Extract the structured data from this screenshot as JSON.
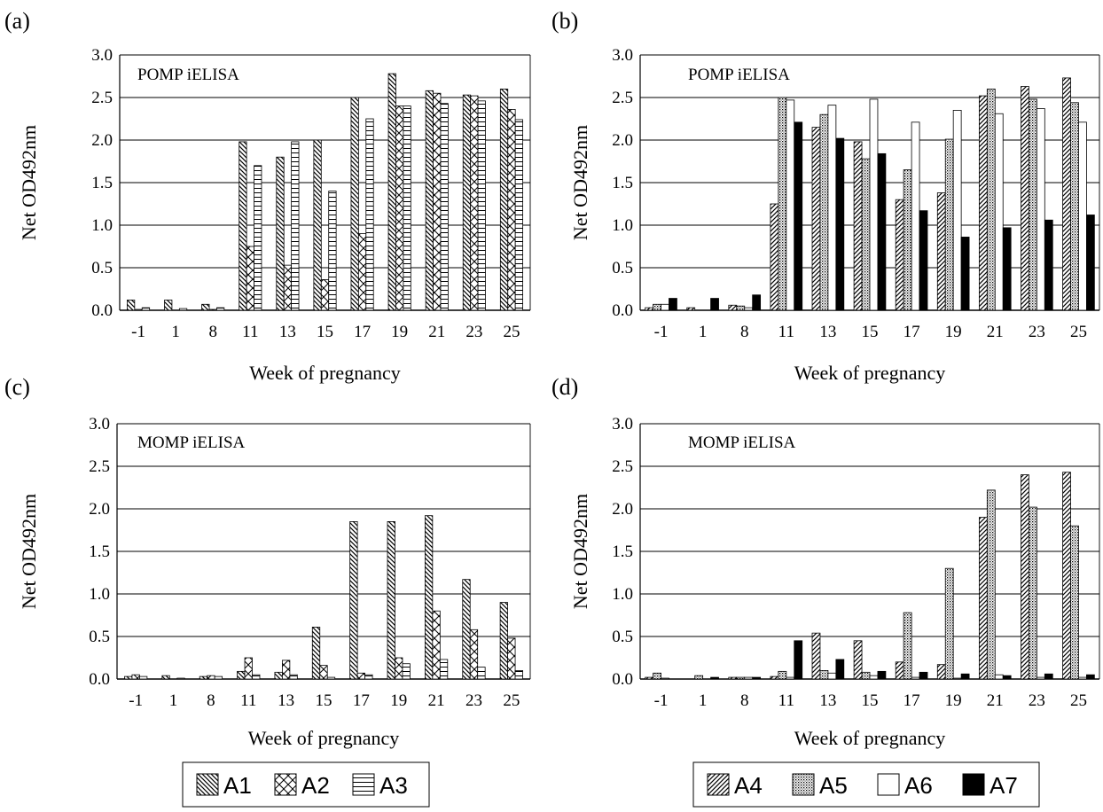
{
  "legends": [
    {
      "items": [
        "A1",
        "A2",
        "A3"
      ]
    },
    {
      "items": [
        "A4",
        "A5",
        "A6",
        "A7"
      ]
    }
  ],
  "chart_data": [
    {
      "type": "bar",
      "panel_label": "(a)",
      "title": "POMP iELISA",
      "xlabel": "Week of pregnancy",
      "ylabel": "Net OD492nm",
      "ylim": [
        0,
        3.0
      ],
      "yticks": [
        "0.0",
        "0.5",
        "1.0",
        "1.5",
        "2.0",
        "2.5",
        "3.0"
      ],
      "grid": true,
      "categories": [
        "-1",
        "1",
        "8",
        "11",
        "13",
        "15",
        "17",
        "19",
        "21",
        "23",
        "25"
      ],
      "series": [
        {
          "name": "A1",
          "values": [
            0.12,
            0.12,
            0.07,
            1.98,
            1.8,
            2.0,
            2.5,
            2.78,
            2.58,
            2.53,
            2.6
          ]
        },
        {
          "name": "A2",
          "values": [
            0.01,
            0.0,
            0.01,
            0.75,
            0.53,
            0.36,
            0.9,
            2.4,
            2.55,
            2.52,
            2.36
          ]
        },
        {
          "name": "A3",
          "values": [
            0.03,
            0.02,
            0.03,
            1.7,
            1.98,
            1.4,
            2.25,
            2.4,
            2.43,
            2.46,
            2.24
          ]
        }
      ]
    },
    {
      "type": "bar",
      "panel_label": "(b)",
      "title": "POMP iELISA",
      "xlabel": "Week of pregnancy",
      "ylabel": "Net OD492nm",
      "ylim": [
        0,
        3.0
      ],
      "yticks": [
        "0.0",
        "0.5",
        "1.0",
        "1.5",
        "2.0",
        "2.5",
        "3.0"
      ],
      "grid": true,
      "categories": [
        "-1",
        "1",
        "8",
        "11",
        "13",
        "15",
        "17",
        "19",
        "21",
        "23",
        "25"
      ],
      "series": [
        {
          "name": "A4",
          "values": [
            0.03,
            0.03,
            0.06,
            1.25,
            2.15,
            1.98,
            1.3,
            1.38,
            2.52,
            2.63,
            2.73
          ]
        },
        {
          "name": "A5",
          "values": [
            0.07,
            0.0,
            0.05,
            2.5,
            2.3,
            1.78,
            1.65,
            2.01,
            2.6,
            2.48,
            2.44
          ]
        },
        {
          "name": "A6",
          "values": [
            0.07,
            0.0,
            0.03,
            2.47,
            2.41,
            2.48,
            2.21,
            2.35,
            2.31,
            2.37,
            2.21
          ]
        },
        {
          "name": "A7",
          "values": [
            0.14,
            0.14,
            0.18,
            2.21,
            2.02,
            1.84,
            1.17,
            0.86,
            0.97,
            1.06,
            1.12
          ]
        }
      ]
    },
    {
      "type": "bar",
      "panel_label": "(c)",
      "title": "MOMP iELISA",
      "xlabel": "Week of pregnancy",
      "ylabel": "Net OD492nm",
      "ylim": [
        0,
        3.0
      ],
      "yticks": [
        "0.0",
        "0.5",
        "1.0",
        "1.5",
        "2.0",
        "2.5",
        "3.0"
      ],
      "grid": true,
      "categories": [
        "-1",
        "1",
        "8",
        "11",
        "13",
        "15",
        "17",
        "19",
        "21",
        "23",
        "25"
      ],
      "series": [
        {
          "name": "A1",
          "values": [
            0.03,
            0.04,
            0.03,
            0.09,
            0.08,
            0.61,
            1.85,
            1.85,
            1.92,
            1.17,
            0.9
          ]
        },
        {
          "name": "A2",
          "values": [
            0.05,
            0.0,
            0.04,
            0.25,
            0.22,
            0.16,
            0.07,
            0.25,
            0.8,
            0.58,
            0.48
          ]
        },
        {
          "name": "A3",
          "values": [
            0.03,
            0.01,
            0.03,
            0.05,
            0.05,
            0.02,
            0.05,
            0.18,
            0.23,
            0.14,
            0.1
          ]
        }
      ]
    },
    {
      "type": "bar",
      "panel_label": "(d)",
      "title": "MOMP iELISA",
      "xlabel": "Week of pregnancy",
      "ylabel": "Net OD492nm",
      "ylim": [
        0,
        3.0
      ],
      "yticks": [
        "0.0",
        "0.5",
        "1.0",
        "1.5",
        "2.0",
        "2.5",
        "3.0"
      ],
      "grid": true,
      "categories": [
        "-1",
        "1",
        "8",
        "11",
        "13",
        "15",
        "17",
        "19",
        "21",
        "23",
        "25"
      ],
      "series": [
        {
          "name": "A4",
          "values": [
            0.02,
            0.0,
            0.02,
            0.03,
            0.54,
            0.45,
            0.2,
            0.17,
            1.9,
            2.4,
            2.43
          ]
        },
        {
          "name": "A5",
          "values": [
            0.07,
            0.04,
            0.02,
            0.09,
            0.1,
            0.08,
            0.78,
            1.3,
            2.22,
            2.02,
            1.8
          ]
        },
        {
          "name": "A6",
          "values": [
            0.01,
            0.0,
            0.02,
            0.02,
            0.07,
            0.04,
            0.02,
            0.01,
            0.05,
            0.02,
            0.02
          ]
        },
        {
          "name": "A7",
          "values": [
            0.0,
            0.02,
            0.02,
            0.45,
            0.23,
            0.09,
            0.08,
            0.06,
            0.04,
            0.06,
            0.05
          ]
        }
      ]
    }
  ]
}
